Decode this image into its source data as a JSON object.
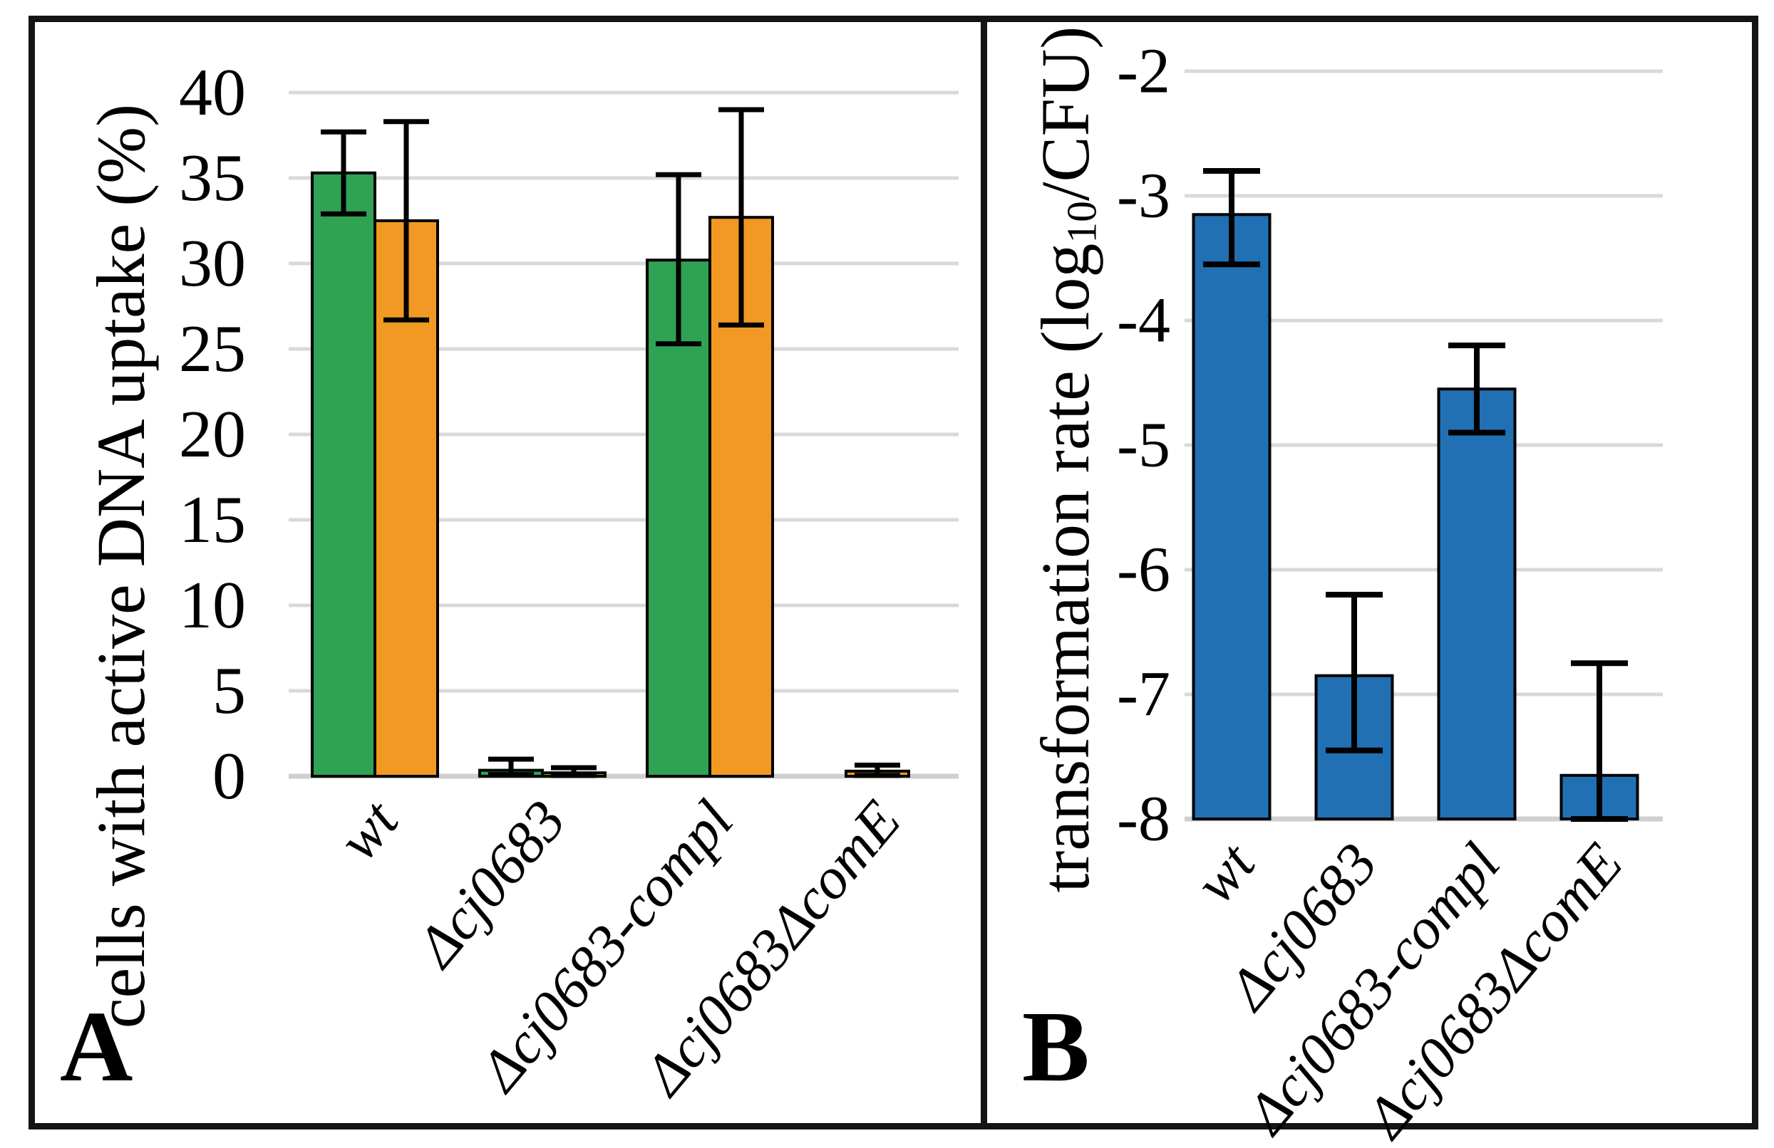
{
  "figure": {
    "panels": [
      {
        "letter": "A",
        "ylabel": "cells with active DNA uptake (%)"
      },
      {
        "letter": "B",
        "ylabel_pre": "transformation rate (log",
        "ylabel_sub": "10",
        "ylabel_post": "/CFU)"
      }
    ]
  },
  "chart_data": [
    {
      "type": "bar",
      "panel": "A",
      "title": "",
      "ylabel": "cells with active DNA uptake (%)",
      "xlabel": "",
      "categories": [
        "wt",
        "Δcj0683",
        "Δcj0683-compl",
        "Δcj0683ΔcomE"
      ],
      "series": [
        {
          "name": "green",
          "color": "#2fa254",
          "values": [
            35.3,
            0.35,
            30.2,
            0
          ],
          "err_low": [
            32.9,
            0.1,
            25.3,
            null
          ],
          "err_high": [
            37.7,
            1.0,
            35.2,
            null
          ]
        },
        {
          "name": "orange",
          "color": "#f29924",
          "values": [
            32.5,
            0.2,
            32.7,
            0.3
          ],
          "err_low": [
            26.7,
            0.05,
            26.4,
            0.05
          ],
          "err_high": [
            38.3,
            0.5,
            39.0,
            0.65
          ]
        }
      ],
      "ylim": [
        0,
        40
      ],
      "ytick_step": 5,
      "grid": true,
      "legend": false
    },
    {
      "type": "bar",
      "panel": "B",
      "title": "",
      "ylabel": "transformation rate (log10/CFU)",
      "xlabel": "",
      "categories": [
        "wt",
        "Δcj0683",
        "Δcj0683-compl",
        "Δcj0683ΔcomE"
      ],
      "series": [
        {
          "name": "blue",
          "color": "#2170b4",
          "values": [
            -3.15,
            -6.85,
            -4.55,
            -7.65
          ],
          "err_low": [
            -3.55,
            -7.45,
            -4.9,
            -8.0
          ],
          "err_high": [
            -2.8,
            -6.2,
            -4.2,
            -6.75
          ]
        }
      ],
      "ylim": [
        -8,
        -2
      ],
      "ytick_step": 1,
      "grid": true,
      "legend": false
    }
  ],
  "style_colors": {
    "gridline": "#d9d9d9",
    "baseline": "#cfcfcf",
    "bar_outline": "#000000",
    "frame": "#141414"
  }
}
